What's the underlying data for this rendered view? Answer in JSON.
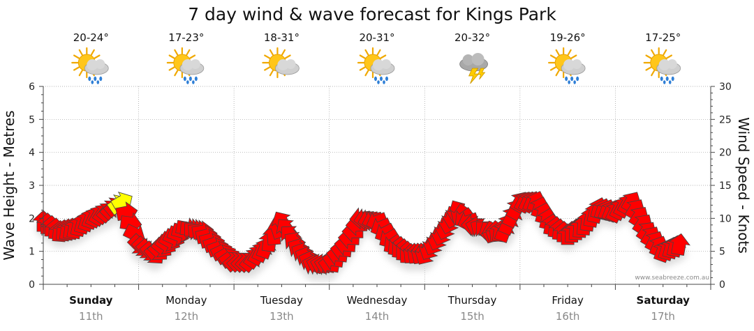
{
  "chart_data": {
    "type": "line",
    "title": "7 day wind & wave forecast for Kings Park",
    "ylabel_left": "Wave Height - Metres",
    "ylabel_right": "Wind Speed - Knots",
    "ylim_left": [
      0,
      6
    ],
    "ylim_right": [
      0,
      30
    ],
    "yticks_left": [
      "0",
      "1",
      "2",
      "3",
      "4",
      "5",
      "6"
    ],
    "yticks_right": [
      "0",
      "5",
      "10",
      "15",
      "20",
      "25",
      "30"
    ],
    "grid": true,
    "watermark": "www.seabreeze.com.au",
    "days": [
      {
        "name": "Sunday",
        "date": "11th",
        "temp": "20-24°",
        "weather": "sun-cloud-rain-icon",
        "bold": true
      },
      {
        "name": "Monday",
        "date": "12th",
        "temp": "17-23°",
        "weather": "sun-cloud-rain-icon",
        "bold": false
      },
      {
        "name": "Tuesday",
        "date": "13th",
        "temp": "18-31°",
        "weather": "sun-cloud-icon",
        "bold": false
      },
      {
        "name": "Wednesday",
        "date": "14th",
        "temp": "20-31°",
        "weather": "sun-cloud-rain-icon",
        "bold": false
      },
      {
        "name": "Thursday",
        "date": "15th",
        "temp": "20-32°",
        "weather": "storm-icon",
        "bold": false
      },
      {
        "name": "Friday",
        "date": "16th",
        "temp": "19-26°",
        "weather": "sun-cloud-rain-icon",
        "bold": false
      },
      {
        "name": "Saturday",
        "date": "17th",
        "temp": "17-25°",
        "weather": "sun-cloud-rain-icon",
        "bold": true
      }
    ],
    "colors": {
      "strong": "#ff0000",
      "very_strong": "#ffff00",
      "outline": "#444444",
      "grid": "#9a9a9a",
      "shadow": "#d8d8d8"
    },
    "series": [
      {
        "name": "Wind Speed (knots)",
        "x_days": [
          0,
          0.17,
          0.33,
          0.5,
          0.67,
          0.83,
          1.0,
          1.17,
          1.33,
          1.5,
          1.67,
          1.83,
          2.0,
          2.17,
          2.33,
          2.5,
          2.67,
          2.83,
          3.0,
          3.17,
          3.33,
          3.5,
          3.67,
          3.83,
          4.0,
          4.17,
          4.33,
          4.5,
          4.67,
          4.83,
          5.0,
          5.17,
          5.33,
          5.5,
          5.67,
          5.83,
          6.0,
          6.17,
          6.33,
          6.5,
          6.67
        ],
        "values": [
          9.5,
          8,
          8.5,
          10,
          11,
          12.5,
          6,
          4.5,
          6.5,
          8.5,
          8,
          5.5,
          3.5,
          3.5,
          5.5,
          9.5,
          5.5,
          3,
          3,
          6,
          10,
          9.5,
          6,
          4.5,
          4.5,
          7.5,
          11,
          9,
          8,
          8,
          12.5,
          12.5,
          9,
          7.5,
          9,
          11.5,
          11,
          12.5,
          8,
          5,
          6
        ]
      },
      {
        "name": "Wind Direction (degrees, arrows)",
        "x_days": [
          0,
          0.17,
          0.33,
          0.5,
          0.67,
          0.83,
          1.0,
          1.17,
          1.33,
          1.5,
          1.67,
          1.83,
          2.0,
          2.17,
          2.33,
          2.5,
          2.67,
          2.83,
          3.0,
          3.17,
          3.33,
          3.5,
          3.67,
          3.83,
          4.0,
          4.17,
          4.33,
          4.5,
          4.67,
          4.83,
          5.0,
          5.17,
          5.33,
          5.5,
          5.67,
          5.83,
          6.0,
          6.17,
          6.33,
          6.5,
          6.67
        ],
        "values": [
          180,
          185,
          190,
          200,
          220,
          240,
          315,
          320,
          300,
          280,
          260,
          250,
          230,
          220,
          200,
          150,
          120,
          110,
          100,
          95,
          85,
          70,
          55,
          45,
          30,
          20,
          15,
          90,
          150,
          200,
          210,
          200,
          190,
          180,
          185,
          195,
          205,
          210,
          215,
          200,
          190
        ]
      }
    ]
  }
}
